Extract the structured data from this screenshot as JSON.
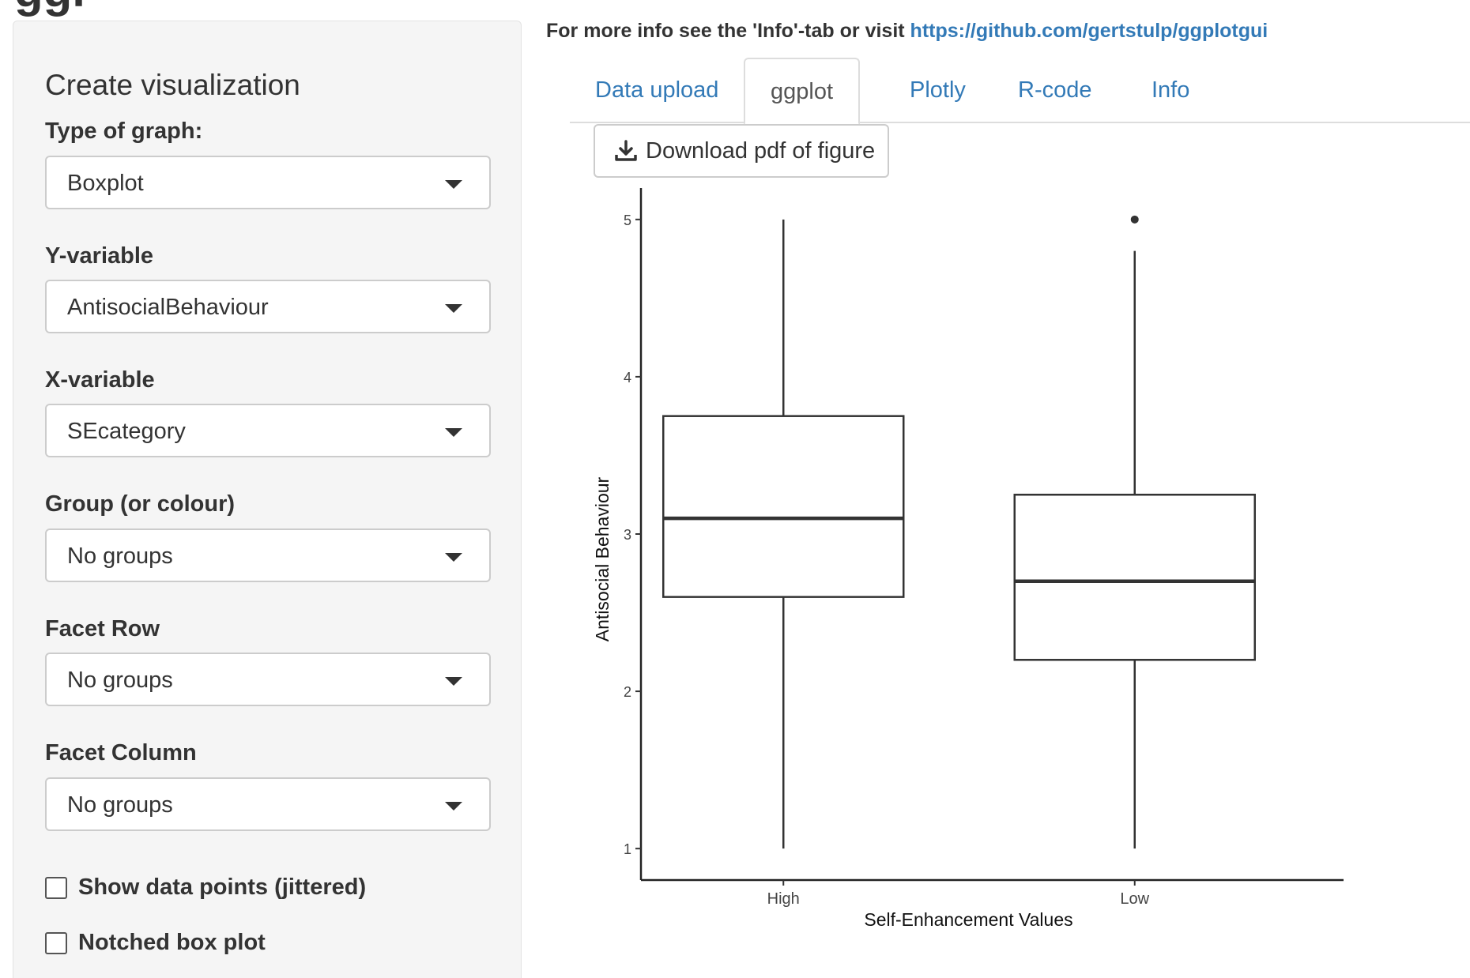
{
  "header": {
    "title_fragment": "ggl"
  },
  "sidebar": {
    "heading": "Create visualization",
    "fields": [
      {
        "label": "Type of graph:",
        "value": "Boxplot"
      },
      {
        "label": "Y-variable",
        "value": "AntisocialBehaviour"
      },
      {
        "label": "X-variable",
        "value": "SEcategory"
      },
      {
        "label": "Group (or colour)",
        "value": "No groups"
      },
      {
        "label": "Facet Row",
        "value": "No groups"
      },
      {
        "label": "Facet Column",
        "value": "No groups"
      }
    ],
    "checkboxes": [
      {
        "label": "Show data points (jittered)",
        "checked": false
      },
      {
        "label": "Notched box plot",
        "checked": false
      }
    ]
  },
  "main": {
    "info_text": "For more info see the 'Info'-tab or visit ",
    "info_link": "https://github.com/gertstulp/ggplotgui",
    "tabs": [
      {
        "label": "Data upload",
        "active": false
      },
      {
        "label": "ggplot",
        "active": true
      },
      {
        "label": "Plotly",
        "active": false
      },
      {
        "label": "R-code",
        "active": false
      },
      {
        "label": "Info",
        "active": false
      }
    ],
    "download_label": "Download pdf of figure",
    "download_icon": "download-icon"
  },
  "chart_data": {
    "type": "boxplot",
    "xlabel": "Self-Enhancement Values",
    "ylabel": "Antisocial Behaviour",
    "ylim": [
      0.8,
      5.2
    ],
    "yticks": [
      1,
      2,
      3,
      4,
      5
    ],
    "categories": [
      "High",
      "Low"
    ],
    "boxes": [
      {
        "category": "High",
        "whisker_low": 1.0,
        "q1": 2.6,
        "median": 3.1,
        "q3": 3.75,
        "whisker_high": 5.0,
        "outliers": []
      },
      {
        "category": "Low",
        "whisker_low": 1.0,
        "q1": 2.2,
        "median": 2.7,
        "q3": 3.25,
        "whisker_high": 4.8,
        "outliers": [
          5.0
        ]
      }
    ],
    "grid": false,
    "color": "#333333"
  }
}
